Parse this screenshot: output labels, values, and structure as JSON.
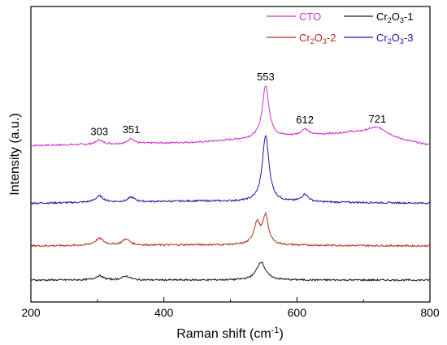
{
  "chart_data": {
    "type": "line",
    "xlabel": "Raman shift (cm",
    "xlabel_sup": "-1",
    "xlabel_end": ")",
    "ylabel": "Intensity (a.u.)",
    "xlim": [
      200,
      800
    ],
    "xticks": [
      "200",
      "400",
      "600",
      "800"
    ],
    "y_ticks_shown": false,
    "legend_position": "top-right",
    "legend": [
      {
        "key": "cto",
        "label": "CTO"
      },
      {
        "key": "cr1",
        "label_main": "Cr",
        "sub1": "2",
        "mid": "O",
        "sub2": "3",
        "suffix": "-1"
      },
      {
        "key": "cr2",
        "label_main": "Cr",
        "sub1": "2",
        "mid": "O",
        "sub2": "3",
        "suffix": "-2"
      },
      {
        "key": "cr3",
        "label_main": "Cr",
        "sub1": "2",
        "mid": "O",
        "sub2": "3",
        "suffix": "-3"
      }
    ],
    "peak_annotations": [
      {
        "label": "303",
        "x": 303
      },
      {
        "label": "351",
        "x": 351
      },
      {
        "label": "553",
        "x": 553
      },
      {
        "label": "612",
        "x": 612
      },
      {
        "label": "721",
        "x": 721
      }
    ],
    "series": [
      {
        "key": "cto",
        "color": "#cc33cc",
        "baseline": 0.63,
        "background": [
          [
            200,
            0
          ],
          [
            450,
            0.015
          ],
          [
            600,
            0.045
          ],
          [
            680,
            0.055
          ],
          [
            720,
            0.035
          ],
          [
            800,
            0
          ]
        ],
        "peaks": [
          [
            303,
            0.02,
            6
          ],
          [
            351,
            0.025,
            5
          ],
          [
            553,
            0.245,
            6
          ],
          [
            612,
            0.03,
            6
          ],
          [
            721,
            0.05,
            22
          ]
        ]
      },
      {
        "key": "cr3",
        "color": "#1a1aa6",
        "baseline": 0.36,
        "background": [
          [
            200,
            0
          ],
          [
            450,
            0.01
          ],
          [
            800,
            0
          ]
        ],
        "peaks": [
          [
            303,
            0.03,
            7
          ],
          [
            351,
            0.022,
            6
          ],
          [
            553,
            0.31,
            6
          ],
          [
            612,
            0.035,
            6
          ]
        ]
      },
      {
        "key": "cr2",
        "color": "#b03020",
        "baseline": 0.16,
        "background": [
          [
            200,
            0
          ],
          [
            450,
            0.005
          ],
          [
            800,
            0
          ]
        ],
        "peaks": [
          [
            303,
            0.032,
            8
          ],
          [
            343,
            0.028,
            7
          ],
          [
            540,
            0.1,
            6
          ],
          [
            553,
            0.13,
            5
          ]
        ]
      },
      {
        "key": "cr1",
        "color": "#1a1a1a",
        "baseline": 0.0,
        "background": [
          [
            200,
            0
          ],
          [
            800,
            0
          ]
        ],
        "peaks": [
          [
            303,
            0.02,
            7
          ],
          [
            343,
            0.018,
            7
          ],
          [
            546,
            0.085,
            8
          ]
        ]
      }
    ]
  }
}
